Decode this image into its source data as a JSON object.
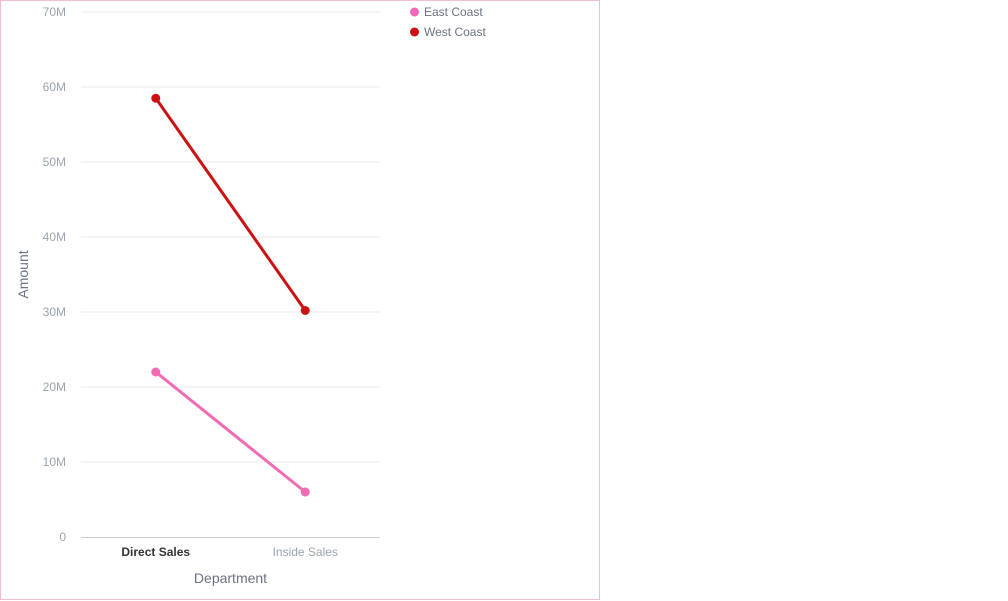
{
  "colors": {
    "east": "#f06ab4",
    "west": "#cc1111",
    "panel_border": "#f4c0d8"
  },
  "chart_data": {
    "type": "line",
    "xlabel": "Department",
    "ylabel": "Amount",
    "categories": [
      "Direct Sales",
      "Inside Sales"
    ],
    "active_category": "Direct Sales",
    "ylim": [
      0,
      70000000
    ],
    "yticks": [
      {
        "value": 0,
        "label": "0"
      },
      {
        "value": 10000000,
        "label": "10M"
      },
      {
        "value": 20000000,
        "label": "20M"
      },
      {
        "value": 30000000,
        "label": "30M"
      },
      {
        "value": 40000000,
        "label": "40M"
      },
      {
        "value": 50000000,
        "label": "50M"
      },
      {
        "value": 60000000,
        "label": "60M"
      },
      {
        "value": 70000000,
        "label": "70M"
      }
    ],
    "grid": true,
    "legend_position": "top-right",
    "series": [
      {
        "name": "East Coast",
        "color": "#f06ab4",
        "values": [
          22000000,
          6000000
        ]
      },
      {
        "name": "West Coast",
        "color": "#cc1111",
        "values": [
          58500000,
          30200000
        ]
      }
    ]
  }
}
